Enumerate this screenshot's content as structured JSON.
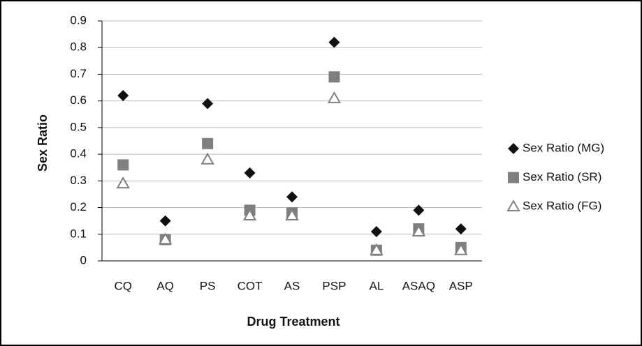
{
  "chart_data": {
    "type": "scatter",
    "categories": [
      "CQ",
      "AQ",
      "PS",
      "COT",
      "AS",
      "PSP",
      "AL",
      "ASAQ",
      "ASP"
    ],
    "series": [
      {
        "name": "Sex Ratio (MG)",
        "color": "#111111",
        "marker": "diamond",
        "values": [
          0.62,
          0.15,
          0.59,
          0.33,
          0.24,
          0.82,
          0.11,
          0.19,
          0.12
        ]
      },
      {
        "name": "Sex Ratio (SR)",
        "color": "#7f7f7f",
        "marker": "square",
        "values": [
          0.36,
          0.08,
          0.44,
          0.19,
          0.18,
          0.69,
          0.04,
          0.12,
          0.05
        ]
      },
      {
        "name": "Sex Ratio (FG)",
        "color": "#808080",
        "marker": "triangle-open",
        "values": [
          0.29,
          0.08,
          0.38,
          0.17,
          0.17,
          0.61,
          0.04,
          0.11,
          0.04
        ]
      }
    ],
    "xlabel": "Drug Treatment",
    "ylabel": "Sex Ratio",
    "ylim": [
      0,
      0.9
    ],
    "yticks": [
      0,
      0.1,
      0.2,
      0.3,
      0.4,
      0.5,
      0.6,
      0.7,
      0.8,
      0.9
    ],
    "grid": true,
    "legend": "right"
  }
}
